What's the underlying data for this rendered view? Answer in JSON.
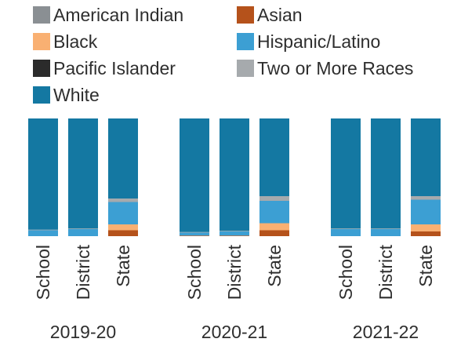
{
  "chart_data": {
    "type": "bar",
    "stacked": true,
    "normalized": true,
    "groups": [
      "2019-20",
      "2020-21",
      "2021-22"
    ],
    "categories": [
      "School",
      "District",
      "State"
    ],
    "series": [
      {
        "name": "Asian",
        "color": "#b5521b",
        "values": [
          [
            0.0,
            0.0,
            0.05
          ],
          [
            0.005,
            0.005,
            0.05
          ],
          [
            0.0,
            0.0,
            0.04
          ]
        ]
      },
      {
        "name": "Black",
        "color": "#f9b072",
        "values": [
          [
            0.0,
            0.0,
            0.05
          ],
          [
            0.0,
            0.0,
            0.06
          ],
          [
            0.0,
            0.0,
            0.06
          ]
        ]
      },
      {
        "name": "Hispanic/Latino",
        "color": "#3c9fd3",
        "values": [
          [
            0.05,
            0.06,
            0.19
          ],
          [
            0.025,
            0.035,
            0.19
          ],
          [
            0.06,
            0.06,
            0.21
          ]
        ]
      },
      {
        "name": "Two or More Races",
        "color": "#a6aaad",
        "values": [
          [
            0.005,
            0.005,
            0.03
          ],
          [
            0.005,
            0.005,
            0.04
          ],
          [
            0.005,
            0.005,
            0.03
          ]
        ]
      },
      {
        "name": "American Indian",
        "color": "#8a8f93",
        "values": [
          [
            0.0,
            0.0,
            0.0
          ],
          [
            0.0,
            0.0,
            0.0
          ],
          [
            0.0,
            0.0,
            0.0
          ]
        ]
      },
      {
        "name": "Pacific Islander",
        "color": "#2b2b2b",
        "values": [
          [
            0.0,
            0.0,
            0.0
          ],
          [
            0.0,
            0.0,
            0.0
          ],
          [
            0.0,
            0.0,
            0.0
          ]
        ]
      },
      {
        "name": "White",
        "color": "#1478a2",
        "values": [
          [
            0.945,
            0.935,
            0.68
          ],
          [
            0.965,
            0.955,
            0.66
          ],
          [
            0.935,
            0.935,
            0.66
          ]
        ]
      }
    ],
    "legend": {
      "placement": "top",
      "items": [
        {
          "name": "American Indian",
          "color": "#8a8f93"
        },
        {
          "name": "Asian",
          "color": "#b5521b"
        },
        {
          "name": "Black",
          "color": "#f9b072"
        },
        {
          "name": "Hispanic/Latino",
          "color": "#3c9fd3"
        },
        {
          "name": "Pacific Islander",
          "color": "#2b2b2b"
        },
        {
          "name": "Two or More Races",
          "color": "#a6aaad"
        },
        {
          "name": "White",
          "color": "#1478a2"
        }
      ]
    },
    "ylim": [
      0,
      1
    ],
    "grid": false
  }
}
